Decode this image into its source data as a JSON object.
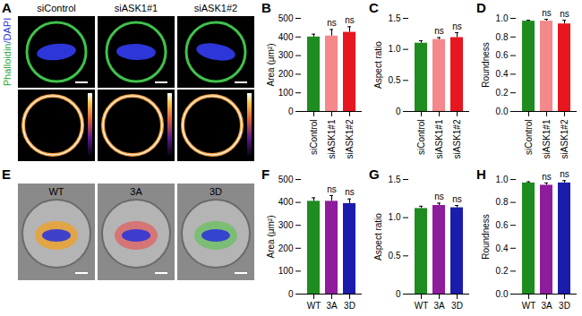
{
  "image_panels": [
    {
      "panel": "A",
      "stain_label": [
        "Phalloidin",
        "/DAPI"
      ],
      "images": [
        "siControl",
        "siASK1#1",
        "siASK1#2"
      ]
    },
    {
      "panel": "E",
      "images": [
        "WT",
        "3A",
        "3D"
      ]
    }
  ],
  "chart_data": [
    {
      "panel": "B",
      "type": "bar",
      "ylabel": "Area (μm²)",
      "categories": [
        "siControl",
        "siASK1#1",
        "siASK1#2"
      ],
      "values": [
        400,
        405,
        425
      ],
      "errors": [
        15,
        35,
        30
      ],
      "annotations": [
        null,
        "ns",
        "ns"
      ],
      "colors": [
        "#1e8c1e",
        "#f4888a",
        "#e8161e"
      ],
      "ylim": [
        0,
        500
      ],
      "yticks": [
        0,
        100,
        200,
        300,
        400,
        500
      ]
    },
    {
      "panel": "C",
      "type": "bar",
      "ylabel": "Aspect ratio",
      "categories": [
        "siControl",
        "siASK1#1",
        "siASK1#2"
      ],
      "values": [
        1.1,
        1.16,
        1.19
      ],
      "errors": [
        0.04,
        0.03,
        0.08
      ],
      "annotations": [
        null,
        "ns",
        "ns"
      ],
      "colors": [
        "#1e8c1e",
        "#f4888a",
        "#e8161e"
      ],
      "ylim": [
        0,
        1.5
      ],
      "yticks": [
        0,
        0.5,
        {
          "value": 1,
          "label": "1.0"
        },
        1.5
      ]
    },
    {
      "panel": "D",
      "type": "bar",
      "ylabel": "Roundness",
      "categories": [
        "siControl",
        "siASK1#1",
        "siASK1#2"
      ],
      "values": [
        0.97,
        0.97,
        0.94
      ],
      "errors": [
        0.01,
        0.02,
        0.04
      ],
      "annotations": [
        null,
        "ns",
        "ns"
      ],
      "colors": [
        "#1e8c1e",
        "#f4888a",
        "#e8161e"
      ],
      "ylim": [
        0,
        1
      ],
      "yticks": [
        {
          "value": 0,
          "label": "0.0"
        },
        0.2,
        0.4,
        0.6,
        0.8,
        {
          "value": 1,
          "label": "1.0"
        }
      ]
    },
    {
      "panel": "F",
      "type": "bar",
      "ylabel": "Area (μm²)",
      "categories": [
        "WT",
        "3A",
        "3D"
      ],
      "values": [
        405,
        405,
        395
      ],
      "errors": [
        15,
        25,
        20
      ],
      "annotations": [
        null,
        "ns",
        "ns"
      ],
      "colors": [
        "#1e8c1e",
        "#8e1c9c",
        "#1c1cac"
      ],
      "ylim": [
        0,
        500
      ],
      "yticks": [
        0,
        100,
        200,
        300,
        400,
        500
      ]
    },
    {
      "panel": "G",
      "type": "bar",
      "ylabel": "Aspect ratio",
      "categories": [
        "WT",
        "3A",
        "3D"
      ],
      "values": [
        1.12,
        1.16,
        1.13
      ],
      "errors": [
        0.03,
        0.03,
        0.03
      ],
      "annotations": [
        null,
        "ns",
        "ns"
      ],
      "colors": [
        "#1e8c1e",
        "#8e1c9c",
        "#1c1cac"
      ],
      "ylim": [
        0,
        1.5
      ],
      "yticks": [
        0,
        0.5,
        {
          "value": 1,
          "label": "1.0"
        },
        1.5
      ]
    },
    {
      "panel": "H",
      "type": "bar",
      "ylabel": "Roundness",
      "categories": [
        "WT",
        "3A",
        "3D"
      ],
      "values": [
        0.97,
        0.95,
        0.97
      ],
      "errors": [
        0.01,
        0.02,
        0.02
      ],
      "annotations": [
        null,
        "ns",
        "ns"
      ],
      "colors": [
        "#1e8c1e",
        "#8e1c9c",
        "#1c1cac"
      ],
      "ylim": [
        0,
        1
      ],
      "yticks": [
        {
          "value": 0,
          "label": "0.0"
        },
        0.2,
        0.4,
        0.6,
        0.8,
        {
          "value": 1,
          "label": "1.0"
        }
      ]
    }
  ]
}
